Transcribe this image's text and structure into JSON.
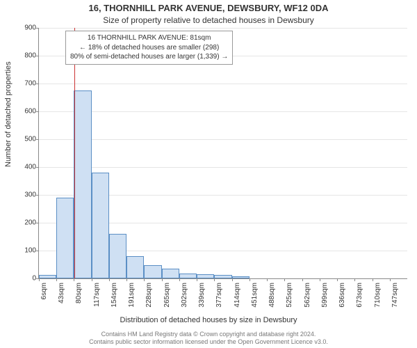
{
  "header": {
    "title": "16, THORNHILL PARK AVENUE, DEWSBURY, WF12 0DA",
    "subtitle": "Size of property relative to detached houses in Dewsbury"
  },
  "axes": {
    "ylabel": "Number of detached properties",
    "xlabel": "Distribution of detached houses by size in Dewsbury",
    "ylim": [
      0,
      900
    ],
    "ytick_step": 100,
    "grid_color": "#e5e5e5",
    "axis_color": "#888888",
    "label_fontsize": 11,
    "tick_fontsize": 10
  },
  "chart": {
    "type": "histogram",
    "bar_fill": "#cfe0f3",
    "bar_border": "#5b8fc5",
    "background": "#ffffff",
    "xticks": [
      "6sqm",
      "43sqm",
      "80sqm",
      "117sqm",
      "154sqm",
      "191sqm",
      "228sqm",
      "265sqm",
      "302sqm",
      "339sqm",
      "377sqm",
      "414sqm",
      "451sqm",
      "488sqm",
      "525sqm",
      "562sqm",
      "599sqm",
      "636sqm",
      "673sqm",
      "710sqm",
      "747sqm"
    ],
    "values": [
      13,
      290,
      675,
      380,
      160,
      80,
      48,
      35,
      18,
      15,
      12,
      7,
      0,
      0,
      0,
      0,
      0,
      0,
      0,
      0
    ]
  },
  "marker": {
    "position_sqm": 81,
    "color": "#cc3333",
    "annotation": {
      "line1": "16 THORNHILL PARK AVENUE: 81sqm",
      "line2": "← 18% of detached houses are smaller (298)",
      "line3": "80% of semi-detached houses are larger (1,339) →"
    }
  },
  "footer": {
    "line1": "Contains HM Land Registry data © Crown copyright and database right 2024.",
    "line2": "Contains public sector information licensed under the Open Government Licence v3.0."
  }
}
